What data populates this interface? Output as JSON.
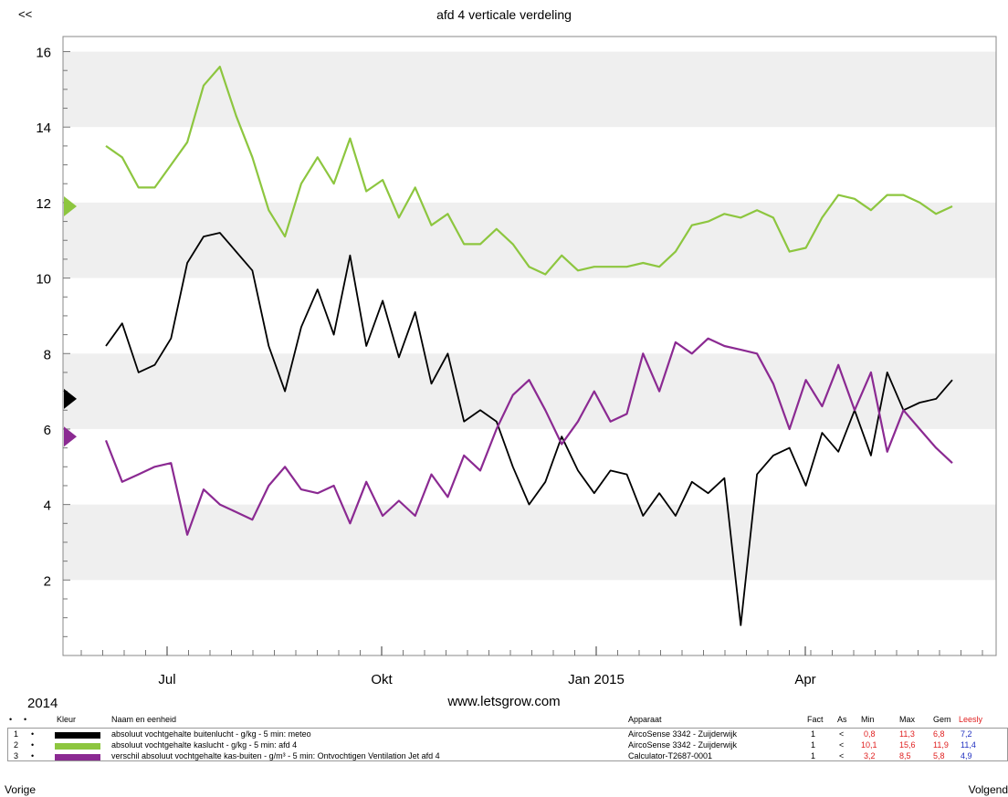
{
  "nav": {
    "prev_top": "<<",
    "prev": "Vorige",
    "next": "Volgend"
  },
  "chart_data": {
    "type": "line",
    "title": "afd 4 verticale verdeling",
    "x_labels": [
      "Jul",
      "Okt",
      "Jan 2015",
      "Apr"
    ],
    "year_label": "2014",
    "website": "www.letsgrow.com",
    "ylim": [
      0,
      16.4
    ],
    "y_ticks": [
      2,
      4,
      6,
      8,
      10,
      12,
      14,
      16
    ],
    "grid": "alternating horizontal bands",
    "series": [
      {
        "name": "absoluut vochtgehalte buitenlucht - g/kg - 5 min: meteo",
        "color": "#000000",
        "marker_value": 6.8,
        "values": [
          8.2,
          8.8,
          7.5,
          7.7,
          8.4,
          10.4,
          11.1,
          11.2,
          10.7,
          10.2,
          8.2,
          7.0,
          8.7,
          9.7,
          8.5,
          10.6,
          8.2,
          9.4,
          7.9,
          9.1,
          7.2,
          8.0,
          6.2,
          6.5,
          6.2,
          5.0,
          4.0,
          4.6,
          5.8,
          4.9,
          4.3,
          4.9,
          4.8,
          3.7,
          4.3,
          3.7,
          4.6,
          4.3,
          4.7,
          0.8,
          4.8,
          5.3,
          5.5,
          4.5,
          5.9,
          5.4,
          6.5,
          5.3,
          7.5,
          6.5,
          6.7,
          6.8,
          7.3
        ]
      },
      {
        "name": "absoluut vochtgehalte kaslucht - g/kg - 5 min: afd 4",
        "color": "#8dc63f",
        "marker_value": 11.9,
        "values": [
          13.5,
          13.2,
          12.4,
          12.4,
          13.0,
          13.6,
          15.1,
          15.6,
          14.3,
          13.2,
          11.8,
          11.1,
          12.5,
          13.2,
          12.5,
          13.7,
          12.3,
          12.6,
          11.6,
          12.4,
          11.4,
          11.7,
          10.9,
          10.9,
          11.3,
          10.9,
          10.3,
          10.1,
          10.6,
          10.2,
          10.3,
          10.3,
          10.3,
          10.4,
          10.3,
          10.7,
          11.4,
          11.5,
          11.7,
          11.6,
          11.8,
          11.6,
          10.7,
          10.8,
          11.6,
          12.2,
          12.1,
          11.8,
          12.2,
          12.2,
          12.0,
          11.7,
          11.9
        ]
      },
      {
        "name": "verschil absoluut vochtgehalte kas-buiten - g/m³ - 5 min: Ontvochtigen Ventilation Jet afd 4",
        "color": "#8b2a92",
        "marker_value": 5.8,
        "values": [
          5.7,
          4.6,
          4.8,
          5.0,
          5.1,
          3.2,
          4.4,
          4.0,
          3.8,
          3.6,
          4.5,
          5.0,
          4.4,
          4.3,
          4.5,
          3.5,
          4.6,
          3.7,
          4.1,
          3.7,
          4.8,
          4.2,
          5.3,
          4.9,
          6.0,
          6.9,
          7.3,
          6.5,
          5.6,
          6.2,
          7.0,
          6.2,
          6.4,
          8.0,
          7.0,
          8.3,
          8.0,
          8.4,
          8.2,
          8.1,
          8.0,
          7.2,
          6.0,
          7.3,
          6.6,
          7.7,
          6.5,
          7.5,
          5.4,
          6.5,
          6.0,
          5.5,
          5.1
        ]
      }
    ]
  },
  "legend": {
    "headers": {
      "dot1": "•",
      "dot2": "•",
      "kleur": "Kleur",
      "naam": "Naam en eenheid",
      "apparaat": "Apparaat",
      "fact": "Fact",
      "as": "As",
      "min": "Min",
      "max": "Max",
      "gem": "Gem",
      "lees": "Leesly"
    },
    "rows": [
      {
        "nr": "1",
        "dot": "•",
        "color": "#000000",
        "naam": "absoluut vochtgehalte buitenlucht - g/kg - 5 min: meteo",
        "apparaat": "AircoSense 3342 - Zuijderwijk",
        "fact": "1",
        "as": "<",
        "min": "0,8",
        "max": "11,3",
        "gem": "6,8",
        "lees": "7,2"
      },
      {
        "nr": "2",
        "dot": "•",
        "color": "#8dc63f",
        "naam": "absoluut vochtgehalte kaslucht - g/kg - 5 min: afd 4",
        "apparaat": "AircoSense 3342 - Zuijderwijk",
        "fact": "1",
        "as": "<",
        "min": "10,1",
        "max": "15,6",
        "gem": "11,9",
        "lees": "11,4"
      },
      {
        "nr": "3",
        "dot": "•",
        "color": "#8b2a92",
        "naam": "verschil absoluut vochtgehalte kas-buiten - g/m³ - 5 min: Ontvochtigen Ventilation Jet afd 4",
        "apparaat": "Calculator-T2687-0001",
        "fact": "1",
        "as": "<",
        "min": "3,2",
        "max": "8,5",
        "gem": "5,8",
        "lees": "4,9"
      }
    ]
  }
}
